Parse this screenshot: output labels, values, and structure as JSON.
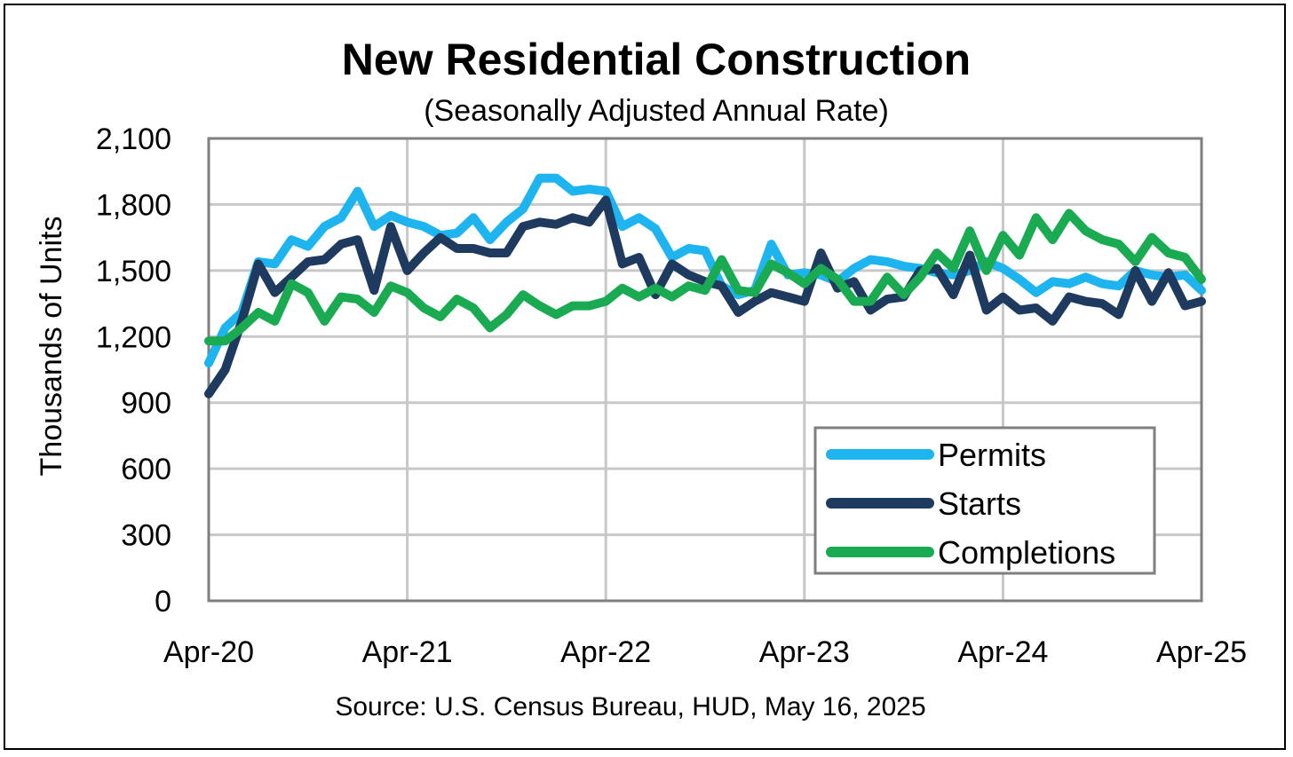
{
  "chart_data": {
    "type": "line",
    "title": "New Residential Construction",
    "subtitle": "(Seasonally Adjusted Annual Rate)",
    "ylabel": "Thousands of Units",
    "xlabel": "",
    "source": "Source:  U.S. Census Bureau, HUD, May 16, 2025",
    "ylim": [
      0,
      2100
    ],
    "yticks": [
      "0",
      "300",
      "600",
      "900",
      "1,200",
      "1,500",
      "1,800",
      "2,100"
    ],
    "ytick_values": [
      0,
      300,
      600,
      900,
      1200,
      1500,
      1800,
      2100
    ],
    "xticks": [
      "Apr-20",
      "Apr-21",
      "Apr-22",
      "Apr-23",
      "Apr-24",
      "Apr-25"
    ],
    "grid": true,
    "legend_position": "bottom-right",
    "x_start": "Apr-20",
    "x_end": "Apr-25",
    "series": [
      {
        "name": "Permits",
        "color": "#1eb4f0",
        "values": [
          1080,
          1240,
          1310,
          1540,
          1530,
          1640,
          1610,
          1700,
          1740,
          1860,
          1700,
          1750,
          1720,
          1700,
          1660,
          1670,
          1740,
          1640,
          1720,
          1780,
          1920,
          1920,
          1860,
          1870,
          1860,
          1700,
          1740,
          1690,
          1560,
          1600,
          1590,
          1430,
          1390,
          1410,
          1620,
          1480,
          1490,
          1480,
          1450,
          1510,
          1550,
          1540,
          1520,
          1510,
          1490,
          1480,
          1500,
          1540,
          1510,
          1460,
          1400,
          1450,
          1440,
          1470,
          1440,
          1430,
          1500,
          1480,
          1470,
          1480,
          1410
        ]
      },
      {
        "name": "Starts",
        "color": "#1f3a5f",
        "values": [
          940,
          1050,
          1270,
          1530,
          1400,
          1470,
          1540,
          1550,
          1620,
          1640,
          1410,
          1700,
          1500,
          1580,
          1650,
          1600,
          1600,
          1580,
          1580,
          1700,
          1720,
          1710,
          1740,
          1720,
          1820,
          1530,
          1560,
          1390,
          1530,
          1480,
          1450,
          1430,
          1310,
          1360,
          1400,
          1380,
          1360,
          1580,
          1420,
          1450,
          1320,
          1370,
          1380,
          1500,
          1510,
          1390,
          1570,
          1320,
          1380,
          1320,
          1330,
          1270,
          1380,
          1360,
          1350,
          1300,
          1500,
          1360,
          1490,
          1340,
          1360
        ]
      },
      {
        "name": "Completions",
        "color": "#1aaa52",
        "values": [
          1180,
          1180,
          1240,
          1310,
          1270,
          1440,
          1400,
          1270,
          1380,
          1370,
          1310,
          1430,
          1400,
          1330,
          1290,
          1370,
          1330,
          1240,
          1300,
          1390,
          1340,
          1300,
          1340,
          1340,
          1360,
          1420,
          1380,
          1420,
          1380,
          1430,
          1410,
          1550,
          1410,
          1400,
          1530,
          1490,
          1440,
          1510,
          1460,
          1360,
          1360,
          1470,
          1390,
          1470,
          1580,
          1510,
          1680,
          1500,
          1660,
          1570,
          1740,
          1640,
          1760,
          1680,
          1640,
          1620,
          1540,
          1650,
          1580,
          1560,
          1460
        ]
      }
    ]
  }
}
